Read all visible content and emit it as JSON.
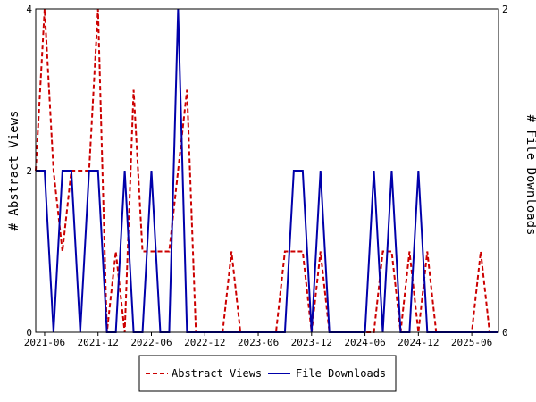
{
  "chart_data": {
    "type": "line",
    "x": [
      "2021-05",
      "2021-06",
      "2021-07",
      "2021-08",
      "2021-09",
      "2021-10",
      "2021-11",
      "2021-12",
      "2022-01",
      "2022-02",
      "2022-03",
      "2022-04",
      "2022-05",
      "2022-06",
      "2022-07",
      "2022-08",
      "2022-09",
      "2022-10",
      "2022-11",
      "2022-12",
      "2023-01",
      "2023-02",
      "2023-03",
      "2023-04",
      "2023-05",
      "2023-06",
      "2023-07",
      "2023-08",
      "2023-09",
      "2023-10",
      "2023-11",
      "2023-12",
      "2024-01",
      "2024-02",
      "2024-03",
      "2024-04",
      "2024-05",
      "2024-06",
      "2024-07",
      "2024-08",
      "2024-09",
      "2024-10",
      "2024-11",
      "2024-12",
      "2025-01",
      "2025-02",
      "2025-03",
      "2025-04",
      "2025-05",
      "2025-06",
      "2025-07",
      "2025-08",
      "2025-09"
    ],
    "series": [
      {
        "name": "Abstract Views",
        "axis": "left",
        "color": "#cc0000",
        "dash": "dashed",
        "values": [
          2,
          4,
          2,
          1,
          2,
          2,
          2,
          4,
          0,
          1,
          0,
          3,
          1,
          1,
          1,
          1,
          2,
          3,
          0,
          0,
          0,
          0,
          1,
          0,
          0,
          0,
          0,
          0,
          1,
          1,
          1,
          0,
          1,
          0,
          0,
          0,
          0,
          0,
          0,
          1,
          1,
          0,
          1,
          0,
          1,
          0,
          0,
          0,
          0,
          0,
          1,
          0,
          null
        ]
      },
      {
        "name": "File Downloads",
        "axis": "right",
        "color": "#0000aa",
        "dash": "solid",
        "values": [
          1,
          1,
          0,
          1,
          1,
          0,
          1,
          1,
          0,
          0,
          1,
          0,
          0,
          1,
          0,
          0,
          2,
          0,
          0,
          0,
          0,
          0,
          0,
          0,
          0,
          0,
          0,
          0,
          0,
          1,
          1,
          0,
          1,
          0,
          0,
          0,
          0,
          0,
          1,
          0,
          1,
          0,
          0,
          1,
          0,
          0,
          0,
          0,
          0,
          0,
          0,
          0,
          0
        ]
      }
    ],
    "x_tick_labels": [
      "2021-06",
      "2021-12",
      "2022-06",
      "2022-12",
      "2023-06",
      "2023-12",
      "2024-06",
      "2024-12",
      "2025-06"
    ],
    "ylabel_left": "# Abstract Views",
    "ylabel_right": "# File Downloads",
    "ylim_left": [
      0,
      4
    ],
    "ylim_right": [
      0,
      2
    ],
    "yticks_left": [
      "0",
      "2",
      "4"
    ],
    "yticks_right": [
      "0",
      "2"
    ],
    "grid": false,
    "legend_position": "bottom-center"
  }
}
